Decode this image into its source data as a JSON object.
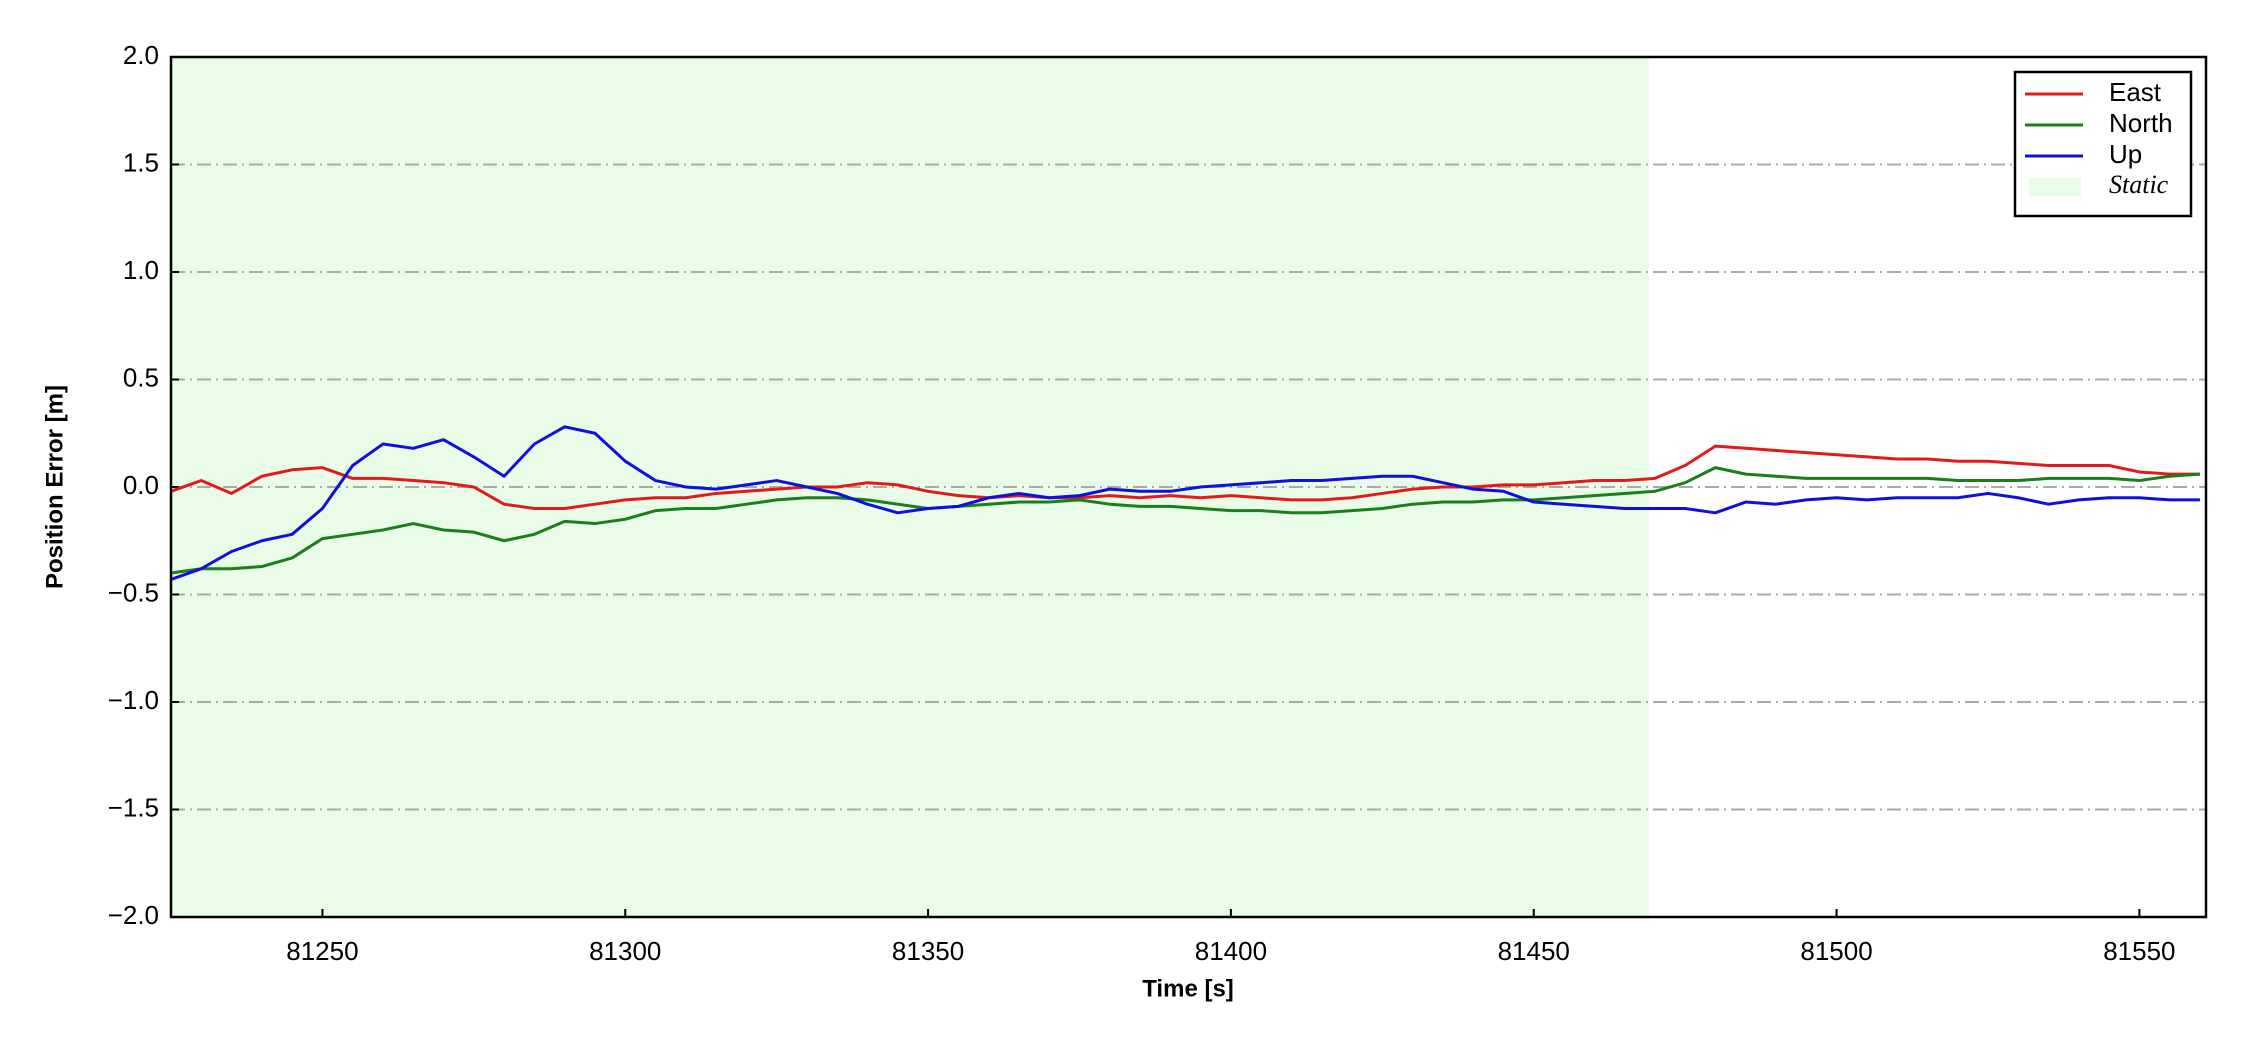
{
  "chart_data": {
    "type": "line",
    "xlabel": "Time [s]",
    "ylabel": "Position Error [m]",
    "x": [
      81225,
      81230,
      81235,
      81240,
      81245,
      81250,
      81255,
      81260,
      81265,
      81270,
      81275,
      81280,
      81285,
      81290,
      81295,
      81300,
      81305,
      81310,
      81315,
      81320,
      81325,
      81330,
      81335,
      81340,
      81345,
      81350,
      81355,
      81360,
      81365,
      81370,
      81375,
      81380,
      81385,
      81390,
      81395,
      81400,
      81405,
      81410,
      81415,
      81420,
      81425,
      81430,
      81435,
      81440,
      81445,
      81450,
      81455,
      81460,
      81465,
      81470,
      81475,
      81480,
      81485,
      81490,
      81495,
      81500,
      81505,
      81510,
      81515,
      81520,
      81525,
      81530,
      81535,
      81540,
      81545,
      81550,
      81555,
      81560
    ],
    "series": [
      {
        "name": "East",
        "color": "#e31a1c",
        "values": [
          -0.02,
          0.03,
          -0.03,
          0.05,
          0.08,
          0.09,
          0.04,
          0.04,
          0.03,
          0.02,
          0.0,
          -0.08,
          -0.1,
          -0.1,
          -0.08,
          -0.06,
          -0.05,
          -0.05,
          -0.03,
          -0.02,
          -0.01,
          0.0,
          0.0,
          0.02,
          0.01,
          -0.02,
          -0.04,
          -0.05,
          -0.04,
          -0.05,
          -0.05,
          -0.04,
          -0.05,
          -0.04,
          -0.05,
          -0.04,
          -0.05,
          -0.06,
          -0.06,
          -0.05,
          -0.03,
          -0.01,
          0.0,
          0.0,
          0.01,
          0.01,
          0.02,
          0.03,
          0.03,
          0.04,
          0.1,
          0.19,
          0.18,
          0.17,
          0.16,
          0.15,
          0.14,
          0.13,
          0.13,
          0.12,
          0.12,
          0.11,
          0.1,
          0.1,
          0.1,
          0.07,
          0.06,
          0.06
        ]
      },
      {
        "name": "North",
        "color": "#1a7f1a",
        "values": [
          -0.4,
          -0.38,
          -0.38,
          -0.37,
          -0.33,
          -0.24,
          -0.22,
          -0.2,
          -0.17,
          -0.2,
          -0.21,
          -0.25,
          -0.22,
          -0.16,
          -0.17,
          -0.15,
          -0.11,
          -0.1,
          -0.1,
          -0.08,
          -0.06,
          -0.05,
          -0.05,
          -0.06,
          -0.08,
          -0.1,
          -0.09,
          -0.08,
          -0.07,
          -0.07,
          -0.06,
          -0.08,
          -0.09,
          -0.09,
          -0.1,
          -0.11,
          -0.11,
          -0.12,
          -0.12,
          -0.11,
          -0.1,
          -0.08,
          -0.07,
          -0.07,
          -0.06,
          -0.06,
          -0.05,
          -0.04,
          -0.03,
          -0.02,
          0.02,
          0.09,
          0.06,
          0.05,
          0.04,
          0.04,
          0.04,
          0.04,
          0.04,
          0.03,
          0.03,
          0.03,
          0.04,
          0.04,
          0.04,
          0.03,
          0.05,
          0.06
        ]
      },
      {
        "name": "Up",
        "color": "#1010dd",
        "values": [
          -0.43,
          -0.38,
          -0.3,
          -0.25,
          -0.22,
          -0.1,
          0.1,
          0.2,
          0.18,
          0.22,
          0.14,
          0.05,
          0.2,
          0.28,
          0.25,
          0.12,
          0.03,
          0.0,
          -0.01,
          0.01,
          0.03,
          0.0,
          -0.03,
          -0.08,
          -0.12,
          -0.1,
          -0.09,
          -0.05,
          -0.03,
          -0.05,
          -0.04,
          -0.01,
          -0.02,
          -0.02,
          0.0,
          0.01,
          0.02,
          0.03,
          0.03,
          0.04,
          0.05,
          0.05,
          0.02,
          -0.01,
          -0.02,
          -0.07,
          -0.08,
          -0.09,
          -0.1,
          -0.1,
          -0.1,
          -0.12,
          -0.07,
          -0.08,
          -0.06,
          -0.05,
          -0.06,
          -0.05,
          -0.05,
          -0.05,
          -0.03,
          -0.05,
          -0.08,
          -0.06,
          -0.05,
          -0.05,
          -0.06,
          -0.06
        ]
      }
    ],
    "spans": [
      {
        "name": "Static",
        "x": [
          81225,
          81469
        ],
        "color": "#e8fce8"
      }
    ],
    "xlim": [
      81225,
      81561
    ],
    "xticks": [
      81250,
      81300,
      81350,
      81400,
      81450,
      81500,
      81550
    ],
    "ylim": [
      -2,
      2
    ],
    "yticks": [
      {
        "value": -2,
        "label": "−2.0"
      },
      {
        "value": -1.5,
        "label": "−1.5"
      },
      {
        "value": -1,
        "label": "−1.0"
      },
      {
        "value": -0.5,
        "label": "−0.5"
      },
      {
        "value": 0,
        "label": "0.0"
      },
      0.5,
      {
        "value": 1,
        "label": "1.0"
      },
      1.5,
      {
        "value": 2,
        "label": "2.0"
      }
    ],
    "grid": true,
    "legend": "upper right"
  }
}
